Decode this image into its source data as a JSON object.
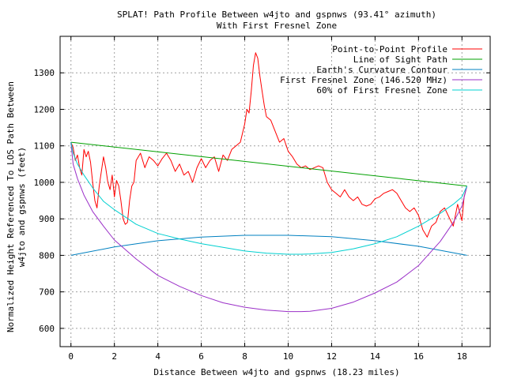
{
  "chart_data": {
    "type": "line",
    "title": "SPLAT! Path Profile Between w4jto and gspnws (93.41° azimuth)",
    "subtitle": "With First Fresnel Zone",
    "xlabel": "Distance Between w4jto and gspnws (18.23 miles)",
    "ylabel": "Normalized Height Referenced To LOS Path Between",
    "ylabel2": "w4jto and gspnws (feet)",
    "xlim": [
      -0.5,
      19.3
    ],
    "ylim": [
      550,
      1400
    ],
    "xticks": [
      0,
      2,
      4,
      6,
      8,
      10,
      12,
      14,
      16,
      18
    ],
    "yticks": [
      600,
      700,
      800,
      900,
      1000,
      1100,
      1200,
      1300
    ],
    "grid": true,
    "legend_position": "top-right",
    "series": [
      {
        "name": "Point-to-Point Profile",
        "color": "#ff0000",
        "x": [
          0,
          0.1,
          0.2,
          0.3,
          0.4,
          0.5,
          0.6,
          0.7,
          0.8,
          0.9,
          1.0,
          1.1,
          1.2,
          1.3,
          1.4,
          1.5,
          1.6,
          1.7,
          1.8,
          1.9,
          2.0,
          2.1,
          2.2,
          2.3,
          2.4,
          2.5,
          2.6,
          2.7,
          2.8,
          2.9,
          3.0,
          3.2,
          3.4,
          3.6,
          3.8,
          4.0,
          4.2,
          4.4,
          4.6,
          4.8,
          5.0,
          5.2,
          5.4,
          5.6,
          5.8,
          6.0,
          6.2,
          6.4,
          6.6,
          6.8,
          7.0,
          7.2,
          7.4,
          7.6,
          7.8,
          8.0,
          8.1,
          8.2,
          8.3,
          8.4,
          8.5,
          8.6,
          8.7,
          8.8,
          8.9,
          9.0,
          9.2,
          9.4,
          9.6,
          9.8,
          10.0,
          10.2,
          10.4,
          10.6,
          10.8,
          11.0,
          11.2,
          11.4,
          11.6,
          11.8,
          12.0,
          12.2,
          12.4,
          12.6,
          12.8,
          13.0,
          13.2,
          13.4,
          13.6,
          13.8,
          14.0,
          14.2,
          14.4,
          14.6,
          14.8,
          15.0,
          15.2,
          15.4,
          15.6,
          15.8,
          16.0,
          16.2,
          16.4,
          16.6,
          16.8,
          17.0,
          17.2,
          17.4,
          17.6,
          17.8,
          18.0,
          18.1,
          18.23
        ],
        "y": [
          1110,
          1095,
          1060,
          1075,
          1040,
          1020,
          1090,
          1070,
          1085,
          1055,
          1000,
          950,
          930,
          990,
          1030,
          1070,
          1040,
          1000,
          980,
          1020,
          960,
          1005,
          990,
          950,
          900,
          885,
          890,
          950,
          990,
          1000,
          1060,
          1080,
          1040,
          1070,
          1060,
          1045,
          1065,
          1080,
          1060,
          1030,
          1050,
          1020,
          1030,
          1000,
          1040,
          1065,
          1040,
          1060,
          1070,
          1030,
          1075,
          1060,
          1090,
          1100,
          1110,
          1160,
          1200,
          1190,
          1250,
          1320,
          1355,
          1340,
          1290,
          1250,
          1210,
          1180,
          1170,
          1140,
          1110,
          1120,
          1085,
          1070,
          1050,
          1040,
          1045,
          1035,
          1040,
          1045,
          1040,
          1000,
          980,
          970,
          960,
          980,
          960,
          950,
          960,
          940,
          935,
          940,
          955,
          960,
          970,
          975,
          980,
          970,
          950,
          930,
          920,
          930,
          910,
          870,
          850,
          880,
          890,
          920,
          930,
          905,
          880,
          940,
          895,
          960,
          990
        ]
      },
      {
        "name": "Line of Sight Path",
        "color": "#00a000",
        "x": [
          0,
          18.23
        ],
        "y": [
          1110,
          990
        ]
      },
      {
        "name": "Earth's Curvature Contour",
        "color": "#0080c0",
        "x": [
          0,
          2,
          4,
          6,
          8,
          9.1,
          10,
          12,
          14,
          16,
          18.23
        ],
        "y": [
          800,
          823,
          840,
          850,
          855,
          855,
          855,
          851,
          840,
          825,
          800
        ]
      },
      {
        "name": "First Fresnel Zone (146.520 MHz)",
        "color": "#9b30c8",
        "x": [
          0,
          0.1,
          0.3,
          0.6,
          1.0,
          1.5,
          2,
          3,
          4,
          5,
          6,
          7,
          8,
          9,
          10,
          10.6,
          11,
          12,
          13,
          14,
          15,
          16,
          17,
          17.6,
          18.0,
          18.23
        ],
        "y": [
          1110,
          1050,
          1010,
          965,
          920,
          880,
          842,
          790,
          745,
          715,
          690,
          670,
          658,
          650,
          646,
          646,
          647,
          655,
          672,
          697,
          727,
          772,
          838,
          890,
          935,
          990
        ]
      },
      {
        "name": "60% of First Fresnel Zone",
        "color": "#00d0d0",
        "x": [
          0,
          0.1,
          0.3,
          0.6,
          1.0,
          1.5,
          2,
          3,
          4,
          5,
          6,
          7,
          8,
          9,
          10,
          10.6,
          11,
          12,
          13,
          14,
          15,
          16,
          17,
          17.6,
          18.0,
          18.23
        ],
        "y": [
          1110,
          1080,
          1050,
          1020,
          985,
          948,
          925,
          885,
          860,
          845,
          832,
          822,
          812,
          806,
          803,
          803,
          804,
          808,
          818,
          832,
          851,
          880,
          915,
          940,
          960,
          990
        ]
      }
    ]
  }
}
